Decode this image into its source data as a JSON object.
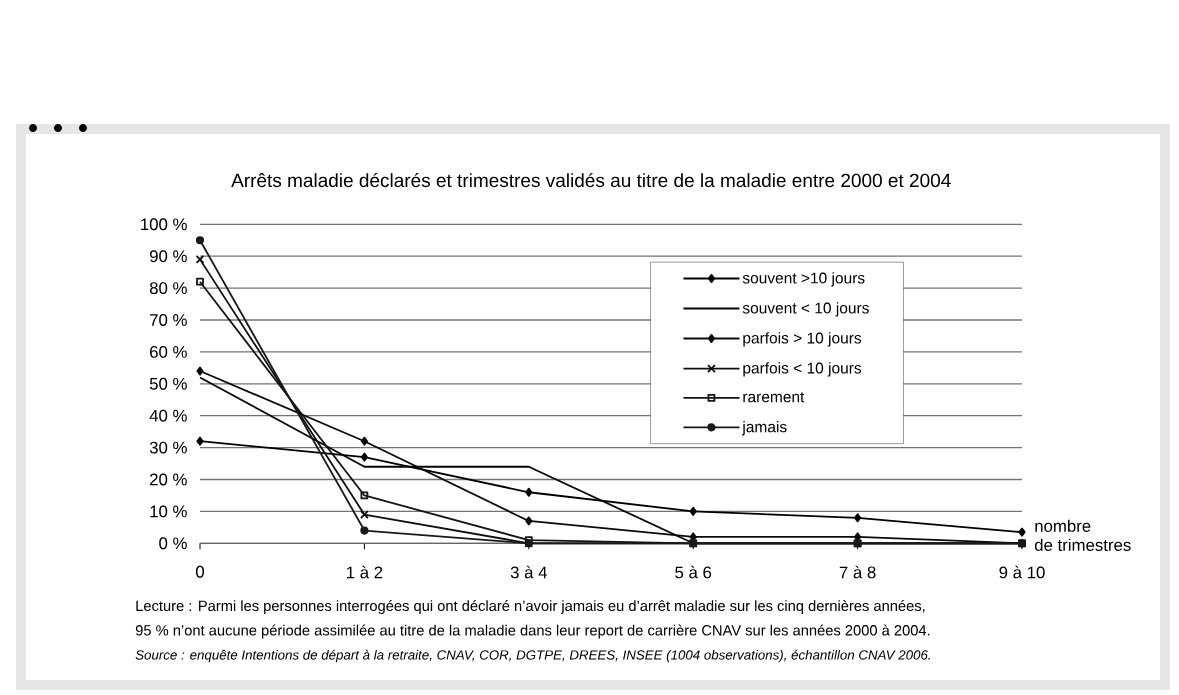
{
  "chart_data": {
    "type": "line",
    "title": "Arrêts maladie déclarés et trimestres validés au titre de la maladie entre 2000 et 2004",
    "xlabel": "nombre de trimestres",
    "categories": [
      "0",
      "1 à 2",
      "3 à 4",
      "5 à 6",
      "7 à 8",
      "9 à 10"
    ],
    "series": [
      {
        "name": "souvent >10 jours",
        "color": "#000000",
        "marker": "diamond",
        "values": [
          32,
          27,
          16,
          10,
          8,
          3.5
        ]
      },
      {
        "name": "souvent < 10 jours",
        "color": "#050505",
        "values": [
          52,
          24,
          24,
          0,
          0,
          0
        ]
      },
      {
        "name": "parfois > 10 jours",
        "color": "#0a0a0a",
        "marker": "diamond",
        "values": [
          54,
          32,
          7,
          2,
          2,
          0
        ]
      },
      {
        "name": "parfois < 10 jours",
        "color": "#0f0f0f",
        "marker": "cross",
        "values": [
          89,
          9,
          0,
          0,
          0,
          0
        ]
      },
      {
        "name": "rarement",
        "color": "#141414",
        "marker": "square",
        "values": [
          82,
          15,
          1,
          0,
          0,
          0
        ]
      },
      {
        "name": "jamais",
        "color": "#191919",
        "marker": "circle",
        "values": [
          95,
          4,
          0,
          0,
          0,
          0
        ]
      }
    ],
    "ylim": [
      0,
      100
    ],
    "yticks": [
      {
        "value": 0,
        "label": "0 %"
      },
      {
        "value": 10,
        "label": "10 %"
      },
      {
        "value": 20,
        "label": "20 %"
      },
      {
        "value": 30,
        "label": "30 %"
      },
      {
        "value": 40,
        "label": "40 %"
      },
      {
        "value": 50,
        "label": "50 %"
      },
      {
        "value": 60,
        "label": "60 %"
      },
      {
        "value": 70,
        "label": "70 %"
      },
      {
        "value": 80,
        "label": "80 %"
      },
      {
        "value": 90,
        "label": "90 %"
      },
      {
        "value": 100,
        "label": "100 %"
      }
    ],
    "grid": "y",
    "legend": "top right",
    "annotations": [
      "Lecture : Parmi les personnes interrogées qui ont déclaré n’avoir jamais eu d’arrêt maladie sur les cinq dernières années,",
      "95 % n’ont aucune période assimilée au titre de la maladie dans leur report de carrière CNAV sur les années 2000 à 2004.",
      "Source : enquête Intentions de départ à la retraite, CNAV, COR, DGTPE, DREES, INSEE (1004 observations), échantillon CNAV 2006."
    ]
  }
}
